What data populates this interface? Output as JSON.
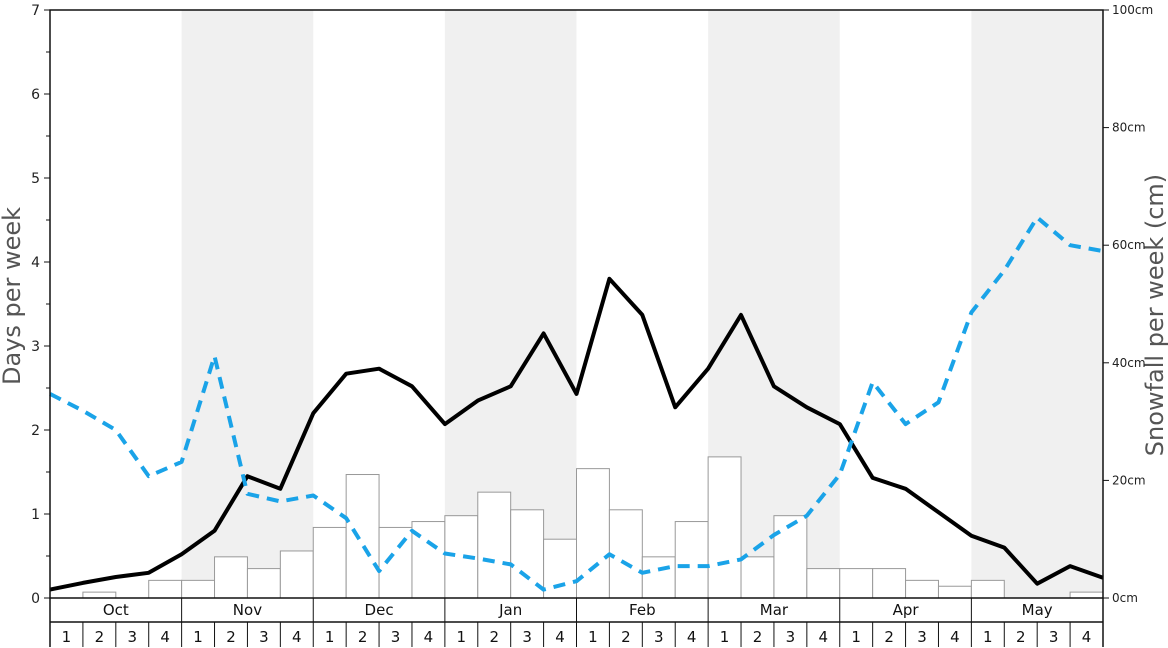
{
  "chart_data": {
    "type": "bar",
    "ylabel": "Days per week",
    "y2label": "Snowfall per week (cm)",
    "ylim": [
      0,
      7
    ],
    "y2lim": [
      0,
      100
    ],
    "yticks": [
      "0",
      "1",
      "2",
      "3",
      "4",
      "5",
      "6",
      "7"
    ],
    "y2ticks": [
      "0cm",
      "20cm",
      "40cm",
      "60cm",
      "80cm",
      "100cm"
    ],
    "months": [
      "Oct",
      "Nov",
      "Dec",
      "Jan",
      "Feb",
      "Mar",
      "Apr",
      "May"
    ],
    "weeks": [
      "1",
      "2",
      "3",
      "4"
    ],
    "shaded_months": [
      "Nov",
      "Jan",
      "Mar",
      "May"
    ],
    "grid": false,
    "colors": {
      "bars": "#ffffff",
      "bar_edge": "#999999",
      "line_solid": "#000000",
      "line_dashed": "#1aa3e8",
      "shade": "#f0f0f0"
    },
    "series": [
      {
        "type": "bar",
        "axis": "right",
        "values": [
          0,
          1,
          0,
          3,
          3,
          7,
          5,
          8,
          12,
          21,
          12,
          13,
          14,
          18,
          15,
          10,
          22,
          15,
          7,
          13,
          24,
          7,
          14,
          5,
          5,
          5,
          3,
          2,
          3,
          0,
          0,
          1
        ]
      },
      {
        "type": "line",
        "style": "solid",
        "axis": "left",
        "values": [
          0.1,
          0.18,
          0.25,
          0.3,
          0.52,
          0.8,
          1.45,
          1.3,
          2.2,
          2.67,
          2.73,
          2.52,
          2.07,
          2.35,
          2.52,
          3.15,
          2.43,
          3.8,
          3.37,
          2.27,
          2.73,
          3.37,
          2.52,
          2.27,
          2.07,
          1.43,
          1.3,
          1.02,
          0.74,
          0.6,
          0.17,
          0.38,
          0.24
        ]
      },
      {
        "type": "line",
        "style": "dashed",
        "axis": "left",
        "values": [
          2.43,
          2.23,
          2.0,
          1.45,
          1.62,
          2.88,
          1.24,
          1.15,
          1.22,
          0.95,
          0.32,
          0.8,
          0.53,
          0.47,
          0.4,
          0.1,
          0.2,
          0.52,
          0.3,
          0.38,
          0.38,
          0.46,
          0.75,
          0.98,
          1.47,
          2.57,
          2.07,
          2.33,
          3.4,
          3.9,
          4.53,
          4.2,
          4.13
        ]
      }
    ]
  }
}
